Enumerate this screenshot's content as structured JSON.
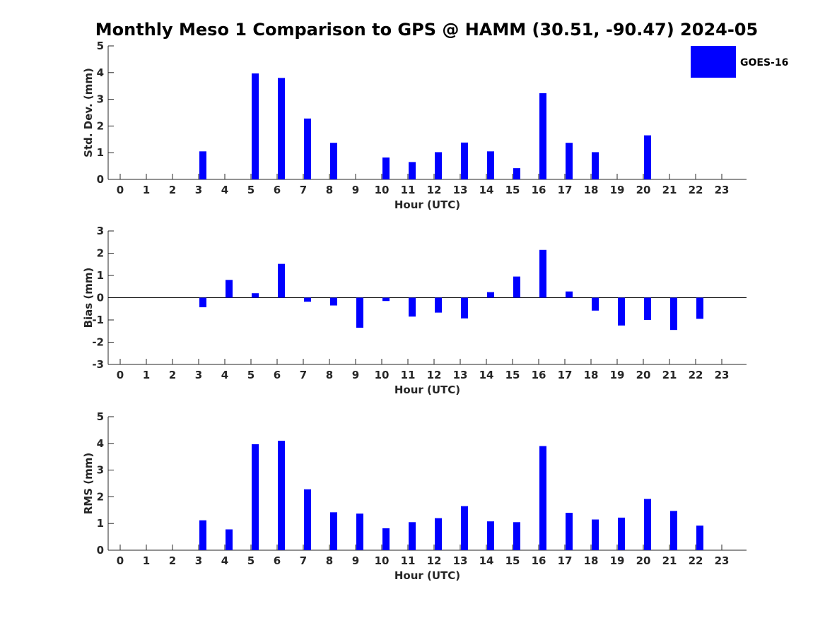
{
  "title": "Monthly Meso 1 Comparison to GPS @ HAMM (30.51, -90.47) 2024-05",
  "colors": {
    "bar": "#0000ff",
    "axis": "#262626"
  },
  "legend": {
    "label": "GOES-16",
    "position": "top-right"
  },
  "chart_data": [
    {
      "type": "bar",
      "xlabel": "Hour (UTC)",
      "ylabel": "Std. Dev. (mm)",
      "ylim": [
        0,
        5
      ],
      "yticks": [
        "0",
        "1",
        "2",
        "3",
        "4",
        "5"
      ],
      "categories": [
        "0",
        "1",
        "2",
        "3",
        "4",
        "5",
        "6",
        "7",
        "8",
        "9",
        "10",
        "11",
        "12",
        "13",
        "14",
        "15",
        "16",
        "17",
        "18",
        "19",
        "20",
        "21",
        "22",
        "23"
      ],
      "series": [
        {
          "name": "GOES-16",
          "values": [
            0,
            0,
            0,
            1.05,
            0,
            3.97,
            3.8,
            2.28,
            1.37,
            0,
            0.82,
            0.65,
            1.02,
            1.38,
            1.05,
            0.42,
            3.23,
            1.37,
            1.02,
            0,
            1.65,
            0,
            0,
            0
          ]
        }
      ]
    },
    {
      "type": "bar",
      "xlabel": "Hour (UTC)",
      "ylabel": "Bias (mm)",
      "ylim": [
        -3,
        3
      ],
      "yticks": [
        "-3",
        "-2",
        "-1",
        "0",
        "1",
        "2",
        "3"
      ],
      "categories": [
        "0",
        "1",
        "2",
        "3",
        "4",
        "5",
        "6",
        "7",
        "8",
        "9",
        "10",
        "11",
        "12",
        "13",
        "14",
        "15",
        "16",
        "17",
        "18",
        "19",
        "20",
        "21",
        "22",
        "23"
      ],
      "series": [
        {
          "name": "GOES-16",
          "values": [
            0,
            0,
            0,
            -0.43,
            0.8,
            0.2,
            1.52,
            -0.18,
            -0.35,
            -1.35,
            -0.15,
            -0.85,
            -0.67,
            -0.93,
            0.25,
            0.95,
            2.15,
            0.28,
            -0.58,
            -1.25,
            -1.0,
            -1.45,
            -0.95,
            0
          ]
        }
      ]
    },
    {
      "type": "bar",
      "xlabel": "Hour (UTC)",
      "ylabel": "RMS (mm)",
      "ylim": [
        0,
        5
      ],
      "yticks": [
        "0",
        "1",
        "2",
        "3",
        "4",
        "5"
      ],
      "categories": [
        "0",
        "1",
        "2",
        "3",
        "4",
        "5",
        "6",
        "7",
        "8",
        "9",
        "10",
        "11",
        "12",
        "13",
        "14",
        "15",
        "16",
        "17",
        "18",
        "19",
        "20",
        "21",
        "22",
        "23"
      ],
      "series": [
        {
          "name": "GOES-16",
          "values": [
            0,
            0,
            0,
            1.12,
            0.78,
            3.97,
            4.1,
            2.28,
            1.42,
            1.37,
            0.82,
            1.05,
            1.2,
            1.65,
            1.08,
            1.05,
            3.9,
            1.4,
            1.15,
            1.22,
            1.92,
            1.47,
            0.92,
            0
          ]
        }
      ]
    }
  ]
}
